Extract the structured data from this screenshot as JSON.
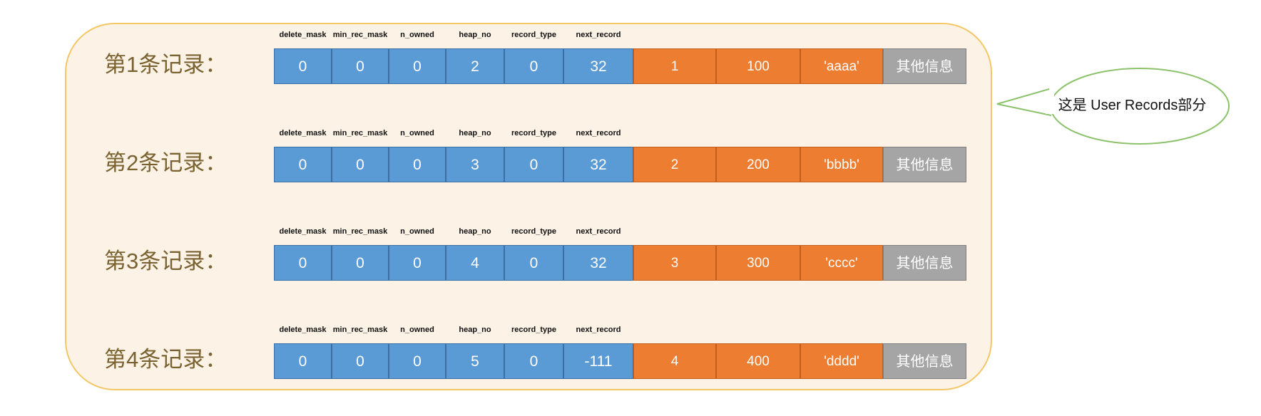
{
  "headers": [
    "delete_mask",
    "min_rec_mask",
    "n_owned",
    "heap_no",
    "record_type",
    "next_record"
  ],
  "records": [
    {
      "label": "第1条记录：",
      "cells": [
        "0",
        "0",
        "0",
        "2",
        "0",
        "32",
        "1",
        "100",
        "'aaaa'",
        "其他信息"
      ]
    },
    {
      "label": "第2条记录：",
      "cells": [
        "0",
        "0",
        "0",
        "3",
        "0",
        "32",
        "2",
        "200",
        "'bbbb'",
        "其他信息"
      ]
    },
    {
      "label": "第3条记录：",
      "cells": [
        "0",
        "0",
        "0",
        "4",
        "0",
        "32",
        "3",
        "300",
        "'cccc'",
        "其他信息"
      ]
    },
    {
      "label": "第4条记录：",
      "cells": [
        "0",
        "0",
        "0",
        "5",
        "0",
        "-111",
        "4",
        "400",
        "'dddd'",
        "其他信息"
      ]
    }
  ],
  "callout": {
    "text": "这是 User Records部分"
  },
  "colors": {
    "container_bg": "#fcf2e6",
    "container_border": "#f4c766",
    "header_field": "#5b9bd5",
    "column_value": "#ed7d31",
    "other_info": "#a5a5a5",
    "callout_border": "#8cc26b"
  }
}
